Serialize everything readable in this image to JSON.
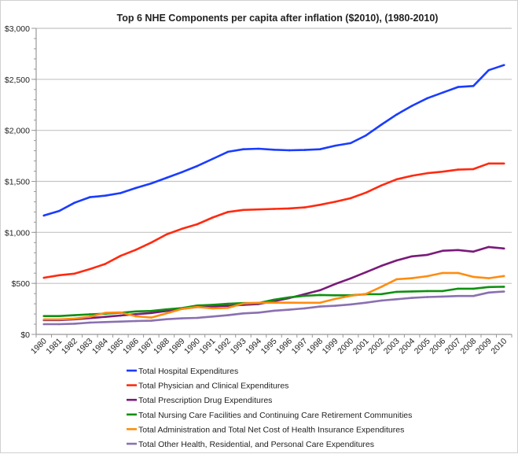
{
  "chart_data": {
    "type": "line",
    "title": "Top 6 NHE Components per capita after inflation ($2010), (1980-2010)",
    "xlabel": "",
    "ylabel": "",
    "ylim": [
      0,
      3000
    ],
    "y_ticks": [
      "$0",
      "$500",
      "$1,000",
      "$1,500",
      "$2,000",
      "$2,500",
      "$3,000"
    ],
    "y_tick_values": [
      0,
      500,
      1000,
      1500,
      2000,
      2500,
      3000
    ],
    "grid": "horizontal major",
    "legend": "bottom",
    "categories": [
      "1980",
      "1981",
      "1982",
      "1983",
      "1984",
      "1985",
      "1986",
      "1987",
      "1988",
      "1989",
      "1990",
      "1991",
      "1992",
      "1993",
      "1994",
      "1995",
      "1996",
      "1997",
      "1998",
      "1999",
      "2000",
      "2001",
      "2002",
      "2003",
      "2004",
      "2005",
      "2006",
      "2007",
      "2008",
      "2009",
      "2010"
    ],
    "series": [
      {
        "name": "Total Hospital Expenditures",
        "color": "#1a3cff",
        "values": [
          1165,
          1210,
          1290,
          1345,
          1360,
          1385,
          1435,
          1480,
          1535,
          1590,
          1650,
          1720,
          1790,
          1815,
          1820,
          1810,
          1805,
          1808,
          1815,
          1850,
          1875,
          1950,
          2055,
          2155,
          2240,
          2315,
          2370,
          2425,
          2435,
          2590,
          2640
        ]
      },
      {
        "name": "Total Physician and Clinical Expenditures",
        "color": "#ff2a10",
        "values": [
          555,
          580,
          595,
          640,
          690,
          770,
          830,
          900,
          980,
          1035,
          1080,
          1145,
          1200,
          1220,
          1225,
          1230,
          1235,
          1245,
          1270,
          1300,
          1335,
          1390,
          1460,
          1520,
          1555,
          1580,
          1595,
          1615,
          1620,
          1675,
          1675
        ]
      },
      {
        "name": "Total Prescription Drug Expenditures",
        "color": "#7a1a7a",
        "values": [
          140,
          140,
          148,
          160,
          172,
          185,
          198,
          210,
          230,
          250,
          268,
          275,
          280,
          290,
          298,
          325,
          356,
          394,
          433,
          494,
          549,
          610,
          672,
          725,
          765,
          780,
          820,
          827,
          811,
          857,
          842
        ]
      },
      {
        "name": "Total Nursing Care Facilities and Continuing Care Retirement Communities",
        "color": "#109010",
        "values": [
          180,
          180,
          188,
          197,
          203,
          212,
          225,
          230,
          245,
          258,
          283,
          290,
          300,
          307,
          307,
          340,
          363,
          378,
          386,
          383,
          383,
          394,
          395,
          417,
          421,
          425,
          425,
          448,
          448,
          464,
          467
        ]
      },
      {
        "name": "Total Administration and Total Net Cost of Health Insurance Expenditures",
        "color": "#ff8c10",
        "values": [
          147,
          147,
          155,
          173,
          211,
          215,
          177,
          165,
          207,
          250,
          268,
          255,
          260,
          303,
          310,
          311,
          311,
          310,
          310,
          348,
          378,
          397,
          466,
          541,
          551,
          571,
          602,
          602,
          564,
          551,
          572
        ]
      },
      {
        "name": "Total Other Health, Residential, and Personal Care Expenditures",
        "color": "#8a70b0",
        "values": [
          100,
          100,
          105,
          116,
          121,
          126,
          131,
          134,
          149,
          157,
          162,
          175,
          188,
          206,
          214,
          232,
          242,
          255,
          273,
          281,
          294,
          311,
          332,
          345,
          358,
          366,
          371,
          376,
          376,
          410,
          420
        ]
      }
    ]
  }
}
